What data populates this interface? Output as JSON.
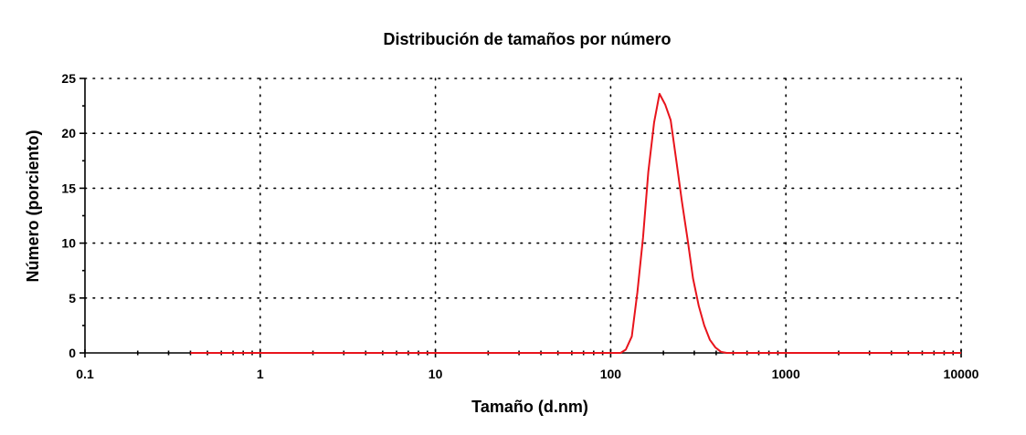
{
  "chart_data": {
    "type": "line",
    "title": "Distribución de tamaños por número",
    "xlabel": "Tamaño (d.nm)",
    "ylabel": "Número (porciento)",
    "x_scale": "log",
    "xlim": [
      0.1,
      10000
    ],
    "ylim": [
      0,
      25
    ],
    "grid": true,
    "x_ticks": [
      0.1,
      1,
      10,
      100,
      1000,
      10000
    ],
    "x_tick_labels": [
      "0.1",
      "1",
      "10",
      "100",
      "1000",
      "10000"
    ],
    "y_ticks": [
      0,
      5,
      10,
      15,
      20,
      25
    ],
    "y_tick_labels": [
      "0",
      "5",
      "10",
      "15",
      "20",
      "25"
    ],
    "series": [
      {
        "color": "#e8141c",
        "x": [
          0.4,
          1,
          10,
          100,
          106,
          114,
          122,
          132,
          142,
          153,
          164,
          177,
          190,
          205,
          220,
          237,
          255,
          275,
          295,
          318,
          342,
          368,
          396,
          426,
          459,
          494,
          531,
          1000,
          10000
        ],
        "y": [
          0,
          0,
          0,
          0,
          0,
          0,
          0.3,
          1.5,
          5.5,
          10.5,
          16.5,
          21.0,
          23.6,
          22.6,
          21.2,
          17.5,
          13.8,
          10.3,
          6.8,
          4.3,
          2.5,
          1.2,
          0.5,
          0.1,
          0,
          0,
          0,
          0,
          0
        ]
      }
    ]
  }
}
